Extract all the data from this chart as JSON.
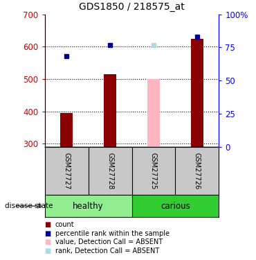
{
  "title": "GDS1850 / 218575_at",
  "samples": [
    "GSM27727",
    "GSM27728",
    "GSM27725",
    "GSM27726"
  ],
  "bar_values": [
    395,
    515,
    null,
    625
  ],
  "bar_absent_values": [
    null,
    null,
    500,
    null
  ],
  "rank_values": [
    570,
    605,
    null,
    630
  ],
  "rank_absent_values": [
    null,
    null,
    605,
    null
  ],
  "ylim_left": [
    290,
    700
  ],
  "yticks_left": [
    300,
    400,
    500,
    600,
    700
  ],
  "yticks_right": [
    0,
    25,
    50,
    75,
    100
  ],
  "ytick_labels_right": [
    "0",
    "25",
    "50",
    "75",
    "100%"
  ],
  "bar_base": 290,
  "bar_color": "#8B0000",
  "bar_absent_color": "#FFB6C1",
  "rank_color": "#00008B",
  "rank_absent_color": "#ADD8E6",
  "healthy_color": "#90EE90",
  "carious_color": "#32CD32",
  "label_bg_color": "#C8C8C8",
  "legend_items": [
    {
      "label": "count",
      "color": "#8B0000"
    },
    {
      "label": "percentile rank within the sample",
      "color": "#00008B"
    },
    {
      "label": "value, Detection Call = ABSENT",
      "color": "#FFB6C1"
    },
    {
      "label": "rank, Detection Call = ABSENT",
      "color": "#ADD8E6"
    }
  ],
  "bar_width": 0.28
}
